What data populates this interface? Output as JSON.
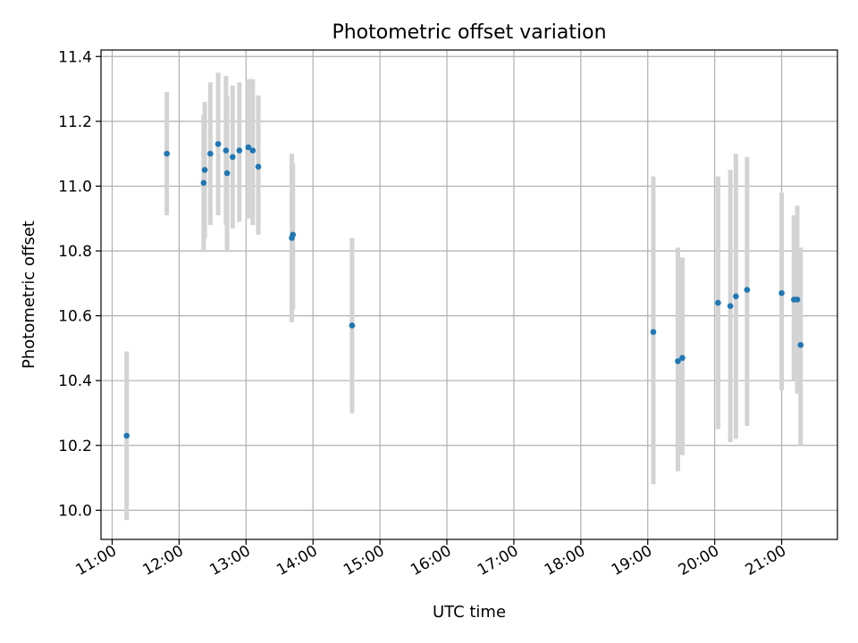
{
  "chart_data": {
    "type": "scatter",
    "title": "Photometric offset variation",
    "xlabel": "UTC time",
    "ylabel": "Photometric offset",
    "xlim": [
      "10:50",
      "21:50"
    ],
    "ylim": [
      9.91,
      11.42
    ],
    "x_ticks": [
      "11:00",
      "12:00",
      "13:00",
      "14:00",
      "15:00",
      "16:00",
      "17:00",
      "18:00",
      "19:00",
      "20:00",
      "21:00"
    ],
    "y_ticks": [
      10.0,
      10.2,
      10.4,
      10.6,
      10.8,
      11.0,
      11.2,
      11.4
    ],
    "y_tick_labels": [
      "10.0",
      "10.2",
      "10.4",
      "10.6",
      "10.8",
      "11.0",
      "11.2",
      "11.4"
    ],
    "grid": true,
    "marker_color": "#1f77b4",
    "errorbar_color": "#d3d3d3",
    "points": [
      {
        "x": "11:13",
        "y": 10.23,
        "yerr_low": 9.97,
        "yerr_high": 10.49
      },
      {
        "x": "11:49",
        "y": 11.1,
        "yerr_low": 10.91,
        "yerr_high": 11.29
      },
      {
        "x": "12:22",
        "y": 11.01,
        "yerr_low": 10.8,
        "yerr_high": 11.22
      },
      {
        "x": "12:23",
        "y": 11.05,
        "yerr_low": 10.84,
        "yerr_high": 11.26
      },
      {
        "x": "12:28",
        "y": 11.1,
        "yerr_low": 10.88,
        "yerr_high": 11.32
      },
      {
        "x": "12:35",
        "y": 11.13,
        "yerr_low": 10.91,
        "yerr_high": 11.35
      },
      {
        "x": "12:42",
        "y": 11.11,
        "yerr_low": 10.88,
        "yerr_high": 11.34
      },
      {
        "x": "12:43",
        "y": 11.04,
        "yerr_low": 10.8,
        "yerr_high": 11.28
      },
      {
        "x": "12:48",
        "y": 11.09,
        "yerr_low": 10.87,
        "yerr_high": 11.31
      },
      {
        "x": "12:54",
        "y": 11.11,
        "yerr_low": 10.89,
        "yerr_high": 11.32
      },
      {
        "x": "13:02",
        "y": 11.12,
        "yerr_low": 10.9,
        "yerr_high": 11.33
      },
      {
        "x": "13:06",
        "y": 11.11,
        "yerr_low": 10.88,
        "yerr_high": 11.33
      },
      {
        "x": "13:11",
        "y": 11.06,
        "yerr_low": 10.85,
        "yerr_high": 11.28
      },
      {
        "x": "13:41",
        "y": 10.84,
        "yerr_low": 10.58,
        "yerr_high": 11.1
      },
      {
        "x": "13:42",
        "y": 10.85,
        "yerr_low": 10.62,
        "yerr_high": 11.07
      },
      {
        "x": "14:35",
        "y": 10.57,
        "yerr_low": 10.3,
        "yerr_high": 10.84
      },
      {
        "x": "19:05",
        "y": 10.55,
        "yerr_low": 10.08,
        "yerr_high": 11.03
      },
      {
        "x": "19:27",
        "y": 10.46,
        "yerr_low": 10.12,
        "yerr_high": 10.81
      },
      {
        "x": "19:31",
        "y": 10.47,
        "yerr_low": 10.17,
        "yerr_high": 10.78
      },
      {
        "x": "20:03",
        "y": 10.64,
        "yerr_low": 10.25,
        "yerr_high": 11.03
      },
      {
        "x": "20:14",
        "y": 10.63,
        "yerr_low": 10.21,
        "yerr_high": 11.05
      },
      {
        "x": "20:19",
        "y": 10.66,
        "yerr_low": 10.22,
        "yerr_high": 11.1
      },
      {
        "x": "20:29",
        "y": 10.68,
        "yerr_low": 10.26,
        "yerr_high": 11.09
      },
      {
        "x": "21:00",
        "y": 10.67,
        "yerr_low": 10.37,
        "yerr_high": 10.98
      },
      {
        "x": "21:11",
        "y": 10.65,
        "yerr_low": 10.4,
        "yerr_high": 10.91
      },
      {
        "x": "21:14",
        "y": 10.65,
        "yerr_low": 10.36,
        "yerr_high": 10.94
      },
      {
        "x": "21:17",
        "y": 10.51,
        "yerr_low": 10.2,
        "yerr_high": 10.81
      }
    ]
  }
}
